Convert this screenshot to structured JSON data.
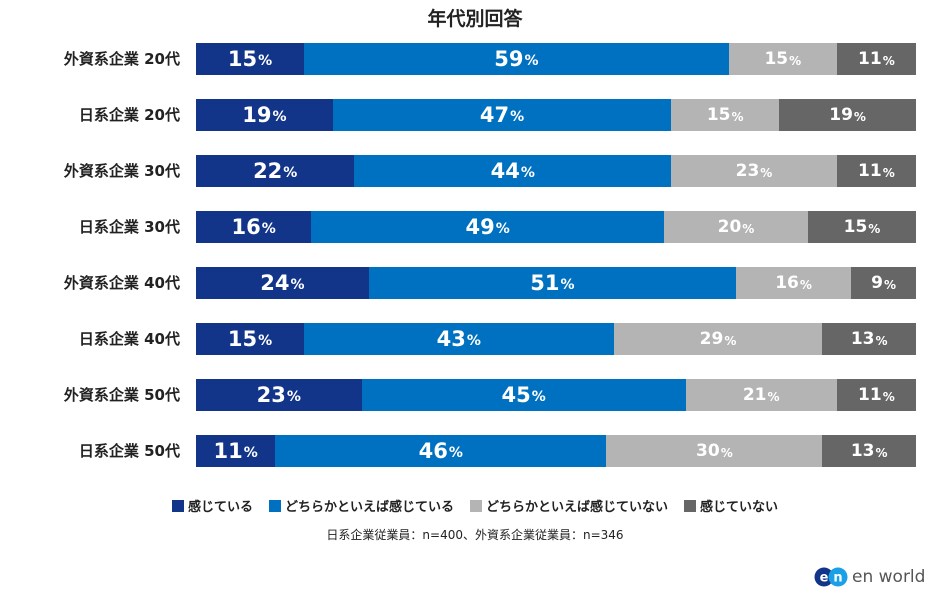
{
  "chart_data": {
    "type": "bar",
    "orientation": "horizontal",
    "stacked": true,
    "title": "年代別回答",
    "categories": [
      "外資系企業 20代",
      "日系企業 20代",
      "外資系企業 30代",
      "日系企業 30代",
      "外資系企業 40代",
      "日系企業 40代",
      "外資系企業 50代",
      "日系企業 50代"
    ],
    "series": [
      {
        "name": "感じている",
        "color": "#12358a",
        "values": [
          15,
          19,
          22,
          16,
          24,
          15,
          23,
          11
        ]
      },
      {
        "name": "どちらかといえば感じている",
        "color": "#0070c0",
        "values": [
          59,
          47,
          44,
          49,
          51,
          43,
          45,
          46
        ]
      },
      {
        "name": "どちらかといえば感じていない",
        "color": "#b4b4b4",
        "values": [
          15,
          15,
          23,
          20,
          16,
          29,
          21,
          30
        ]
      },
      {
        "name": "感じていない",
        "color": "#666666",
        "values": [
          11,
          19,
          11,
          15,
          9,
          13,
          11,
          13
        ]
      }
    ],
    "unit": "%",
    "legend_position": "bottom"
  },
  "note": "日系企業従業員：n=400、外資系企業従業員：n=346",
  "logo": {
    "text": "en world",
    "mark": "en"
  }
}
